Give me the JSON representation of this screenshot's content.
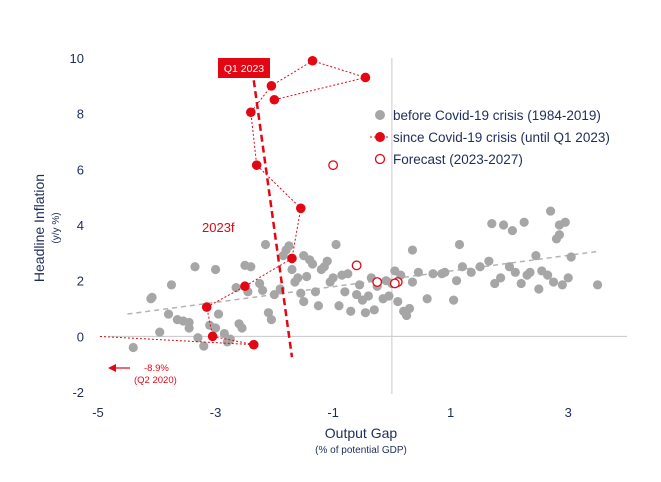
{
  "chart_data": {
    "type": "scatter",
    "xlabel": "Output Gap",
    "xlabel_sub": "(% of potential GDP)",
    "ylabel": "Headline Inflation",
    "ylabel_sub": "(y/y %)",
    "xlim": [
      -5,
      4
    ],
    "ylim": [
      -2,
      10
    ],
    "x_ticks": [
      {
        "value": -5,
        "label": "-5"
      },
      {
        "value": -3,
        "label": "-3"
      },
      {
        "value": -1,
        "label": "-1"
      },
      {
        "value": 1,
        "label": "1"
      },
      {
        "value": 3,
        "label": "3"
      }
    ],
    "y_ticks": [
      {
        "value": -2,
        "label": "-2"
      },
      {
        "value": 0,
        "label": "0"
      },
      {
        "value": 2,
        "label": "2"
      },
      {
        "value": 4,
        "label": "4"
      },
      {
        "value": 6,
        "label": "6"
      },
      {
        "value": 8,
        "label": "8"
      },
      {
        "value": 10,
        "label": "10"
      }
    ],
    "legend_position": "top-right",
    "series": [
      {
        "name": "before Covid-19 crisis (1984-2019)",
        "style": "grey-dots",
        "color": "#a6a6a6",
        "points": [
          [
            -4.4,
            -0.4
          ],
          [
            -4.1,
            1.35
          ],
          [
            -4.08,
            1.4
          ],
          [
            -3.75,
            1.85
          ],
          [
            -3.95,
            0.15
          ],
          [
            -3.8,
            0.8
          ],
          [
            -3.65,
            0.6
          ],
          [
            -3.55,
            0.55
          ],
          [
            -3.45,
            0.3
          ],
          [
            -3.35,
            2.5
          ],
          [
            -3.45,
            0.5
          ],
          [
            -3.3,
            -0.05
          ],
          [
            -3.2,
            -0.35
          ],
          [
            -3.1,
            0.4
          ],
          [
            -3.0,
            0.3
          ],
          [
            -2.95,
            0.8
          ],
          [
            -2.85,
            0.1
          ],
          [
            -2.8,
            -0.2
          ],
          [
            -2.75,
            -0.1
          ],
          [
            -2.6,
            0.45
          ],
          [
            -2.55,
            0.3
          ],
          [
            -3.0,
            2.4
          ],
          [
            -2.65,
            1.75
          ],
          [
            -2.45,
            1.6
          ],
          [
            -2.4,
            2.5
          ],
          [
            -2.25,
            1.9
          ],
          [
            -2.2,
            1.65
          ],
          [
            -2.15,
            3.3
          ],
          [
            -2.05,
            0.6
          ],
          [
            -2.1,
            0.85
          ],
          [
            -2.0,
            1.5
          ],
          [
            -1.9,
            1.7
          ],
          [
            -1.85,
            2.9
          ],
          [
            -1.8,
            3.1
          ],
          [
            -1.75,
            3.25
          ],
          [
            -1.7,
            2.4
          ],
          [
            -1.65,
            1.95
          ],
          [
            -1.6,
            2.1
          ],
          [
            -1.55,
            1.55
          ],
          [
            -1.5,
            2.9
          ],
          [
            -1.5,
            1.25
          ],
          [
            -1.45,
            2.15
          ],
          [
            -1.4,
            2.75
          ],
          [
            -1.35,
            2.6
          ],
          [
            -1.3,
            1.6
          ],
          [
            -1.25,
            1.1
          ],
          [
            -1.2,
            2.4
          ],
          [
            -1.15,
            2.5
          ],
          [
            -1.1,
            2.7
          ],
          [
            -1.05,
            1.95
          ],
          [
            -1.0,
            2.1
          ],
          [
            -0.95,
            3.3
          ],
          [
            -0.9,
            1.1
          ],
          [
            -0.85,
            2.2
          ],
          [
            -0.8,
            1.6
          ],
          [
            -0.75,
            2.25
          ],
          [
            -0.7,
            0.9
          ],
          [
            -0.6,
            1.5
          ],
          [
            -0.55,
            1.85
          ],
          [
            -0.5,
            1.3
          ],
          [
            -0.45,
            0.85
          ],
          [
            -0.4,
            1.45
          ],
          [
            -0.35,
            2.1
          ],
          [
            -0.3,
            0.95
          ],
          [
            -0.25,
            1.8
          ],
          [
            -0.15,
            1.35
          ],
          [
            -0.1,
            2.0
          ],
          [
            -0.05,
            1.45
          ],
          [
            0.0,
            1.9
          ],
          [
            0.05,
            2.35
          ],
          [
            0.1,
            1.25
          ],
          [
            0.15,
            2.2
          ],
          [
            0.2,
            0.9
          ],
          [
            0.25,
            0.75
          ],
          [
            0.3,
            1.0
          ],
          [
            0.35,
            1.95
          ],
          [
            0.35,
            3.1
          ],
          [
            0.45,
            2.3
          ],
          [
            0.6,
            1.35
          ],
          [
            0.7,
            2.25
          ],
          [
            0.85,
            2.25
          ],
          [
            0.9,
            2.3
          ],
          [
            1.05,
            1.3
          ],
          [
            1.1,
            2.0
          ],
          [
            1.15,
            3.3
          ],
          [
            1.2,
            2.5
          ],
          [
            1.35,
            2.3
          ],
          [
            1.5,
            2.5
          ],
          [
            1.65,
            2.7
          ],
          [
            1.7,
            4.05
          ],
          [
            1.75,
            1.9
          ],
          [
            1.85,
            2.1
          ],
          [
            1.9,
            4.0
          ],
          [
            2.0,
            2.5
          ],
          [
            2.05,
            3.8
          ],
          [
            2.1,
            2.3
          ],
          [
            2.2,
            1.9
          ],
          [
            2.25,
            4.1
          ],
          [
            2.3,
            2.2
          ],
          [
            2.35,
            2.3
          ],
          [
            2.45,
            2.9
          ],
          [
            2.5,
            1.7
          ],
          [
            2.55,
            2.35
          ],
          [
            2.65,
            2.2
          ],
          [
            2.7,
            4.5
          ],
          [
            2.75,
            1.95
          ],
          [
            2.8,
            3.5
          ],
          [
            2.85,
            3.65
          ],
          [
            2.85,
            4.0
          ],
          [
            2.9,
            1.85
          ],
          [
            2.95,
            4.1
          ],
          [
            3.0,
            2.1
          ],
          [
            3.05,
            2.85
          ],
          [
            3.5,
            1.85
          ],
          [
            -2.5,
            2.55
          ]
        ]
      },
      {
        "name": "since Covid-19 crisis (until Q1 2023)",
        "style": "red-dots-connected",
        "color": "#e30613",
        "points": [
          [
            -2.35,
            -0.3
          ],
          [
            -3.05,
            0.0
          ],
          [
            -3.15,
            1.05
          ],
          [
            -2.5,
            1.8
          ],
          [
            -1.7,
            2.8
          ],
          [
            -1.55,
            4.6
          ],
          [
            -2.3,
            6.15
          ],
          [
            -2.4,
            8.05
          ],
          [
            -2.05,
            9.0
          ],
          [
            -1.35,
            9.9
          ],
          [
            -0.45,
            9.3
          ],
          [
            -2.0,
            8.5
          ]
        ]
      },
      {
        "name": "Forecast (2023-2027)",
        "style": "red-hollow",
        "color": "#e30613",
        "points": [
          [
            -1.0,
            6.15
          ],
          [
            -0.6,
            2.55
          ],
          [
            -0.25,
            1.95
          ],
          [
            0.1,
            1.95
          ],
          [
            0.05,
            1.9
          ]
        ]
      }
    ],
    "trend_line": {
      "from": [
        -4.5,
        0.8
      ],
      "to": [
        3.5,
        3.05
      ],
      "color": "#a6a6a6"
    },
    "steep_line": {
      "from": [
        -2.35,
        9.2
      ],
      "to": [
        -1.7,
        -0.75
      ],
      "color": "#e30613"
    },
    "zero_lines": {
      "x": 0,
      "y": 0
    },
    "annotations": {
      "q1_label": "Q1 2023",
      "f2023_label": "2023f",
      "off_chart_value": "-8.9%",
      "off_chart_period": "(Q2 2020)"
    }
  }
}
